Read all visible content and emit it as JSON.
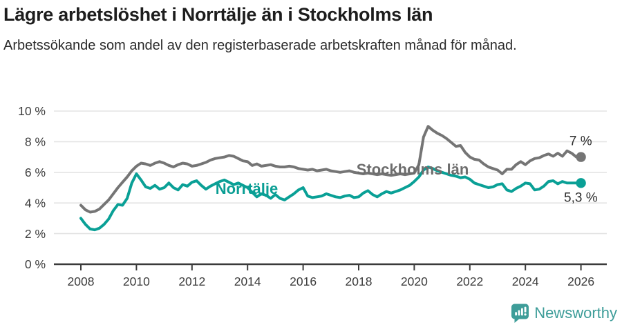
{
  "header": {
    "title": "Lägre arbetslöshet i Norrtälje än i Stockholms län",
    "subtitle": "Arbetssökande som andel av den registerbaserade arbetskraften månad för månad."
  },
  "footer": {
    "logo_text": "Newsworthy",
    "logo_color": "#3e9d99"
  },
  "chart_data": {
    "type": "line",
    "x_start_year": 2008,
    "x_end_year": 2026,
    "points_per_year": 6,
    "ylim": [
      0,
      10
    ],
    "grid": "horizontal",
    "legend_position": "inline-labels",
    "y_axis": {
      "ticks": [
        {
          "label": "10 %",
          "value": 10
        },
        {
          "label": "8 %",
          "value": 8
        },
        {
          "label": "6 %",
          "value": 6
        },
        {
          "label": "4 %",
          "value": 4
        },
        {
          "label": "2 %",
          "value": 2
        },
        {
          "label": "0 %",
          "value": 0
        }
      ]
    },
    "x_axis": {
      "ticks": [
        {
          "label": "2008",
          "year": 2008
        },
        {
          "label": "2010",
          "year": 2010
        },
        {
          "label": "2012",
          "year": 2012
        },
        {
          "label": "2014",
          "year": 2014
        },
        {
          "label": "2016",
          "year": 2016
        },
        {
          "label": "2018",
          "year": 2018
        },
        {
          "label": "2020",
          "year": 2020
        },
        {
          "label": "2022",
          "year": 2022
        },
        {
          "label": "2024",
          "year": 2024
        },
        {
          "label": "2026",
          "year": 2026
        }
      ]
    },
    "series": [
      {
        "id": "stockholms-lan",
        "name": "Stockholms län",
        "color": "#757575",
        "label_color": "#6d6d6d",
        "end_label": "7 %",
        "end_value": 7.0,
        "values": [
          3.85,
          3.55,
          3.4,
          3.45,
          3.6,
          3.9,
          4.2,
          4.6,
          5.0,
          5.35,
          5.7,
          6.1,
          6.4,
          6.6,
          6.55,
          6.45,
          6.6,
          6.7,
          6.6,
          6.45,
          6.35,
          6.5,
          6.6,
          6.55,
          6.4,
          6.45,
          6.55,
          6.65,
          6.8,
          6.9,
          6.95,
          7.0,
          7.1,
          7.05,
          6.9,
          6.75,
          6.7,
          6.45,
          6.55,
          6.4,
          6.45,
          6.5,
          6.4,
          6.35,
          6.35,
          6.4,
          6.35,
          6.25,
          6.2,
          6.15,
          6.2,
          6.1,
          6.15,
          6.2,
          6.1,
          6.05,
          6.0,
          6.05,
          6.1,
          6.0,
          5.95,
          5.9,
          5.95,
          5.9,
          5.85,
          5.9,
          5.85,
          5.8,
          5.85,
          5.9,
          5.85,
          5.9,
          5.95,
          6.5,
          8.3,
          9.0,
          8.75,
          8.55,
          8.4,
          8.2,
          7.95,
          7.7,
          7.75,
          7.3,
          7.0,
          6.85,
          6.8,
          6.55,
          6.35,
          6.25,
          6.15,
          5.9,
          6.2,
          6.2,
          6.5,
          6.7,
          6.5,
          6.75,
          6.9,
          6.95,
          7.1,
          7.2,
          7.05,
          7.25,
          7.05,
          7.4,
          7.25,
          7.0,
          7.0
        ]
      },
      {
        "id": "norrtalje",
        "name": "Norrtälje",
        "color": "#0aa096",
        "label_color": "#0a9e94",
        "end_label": "5,3 %",
        "end_value": 5.3,
        "values": [
          3.0,
          2.6,
          2.3,
          2.25,
          2.35,
          2.6,
          2.95,
          3.5,
          3.9,
          3.85,
          4.3,
          5.3,
          5.9,
          5.5,
          5.05,
          4.95,
          5.15,
          4.9,
          5.0,
          5.3,
          5.0,
          4.85,
          5.2,
          5.1,
          5.35,
          5.45,
          5.15,
          4.9,
          5.1,
          5.25,
          5.4,
          5.5,
          5.35,
          5.2,
          5.3,
          5.15,
          5.0,
          4.7,
          4.4,
          4.6,
          4.5,
          4.3,
          4.55,
          4.3,
          4.2,
          4.4,
          4.6,
          4.85,
          5.0,
          4.45,
          4.35,
          4.4,
          4.45,
          4.6,
          4.5,
          4.4,
          4.35,
          4.45,
          4.5,
          4.35,
          4.4,
          4.65,
          4.8,
          4.55,
          4.4,
          4.6,
          4.75,
          4.65,
          4.75,
          4.85,
          5.0,
          5.15,
          5.4,
          5.7,
          6.15,
          6.35,
          6.25,
          6.1,
          6.0,
          5.9,
          5.8,
          5.75,
          5.65,
          5.7,
          5.55,
          5.3,
          5.2,
          5.1,
          5.0,
          5.05,
          5.2,
          5.25,
          4.85,
          4.75,
          4.95,
          5.1,
          5.3,
          5.25,
          4.85,
          4.9,
          5.1,
          5.4,
          5.45,
          5.25,
          5.4,
          5.3,
          5.3,
          5.3,
          5.3
        ]
      }
    ],
    "colors": {
      "gridline": "#e3e3e3",
      "axis": "#3b3b3b",
      "tick_text": "#3c3c3c"
    }
  }
}
